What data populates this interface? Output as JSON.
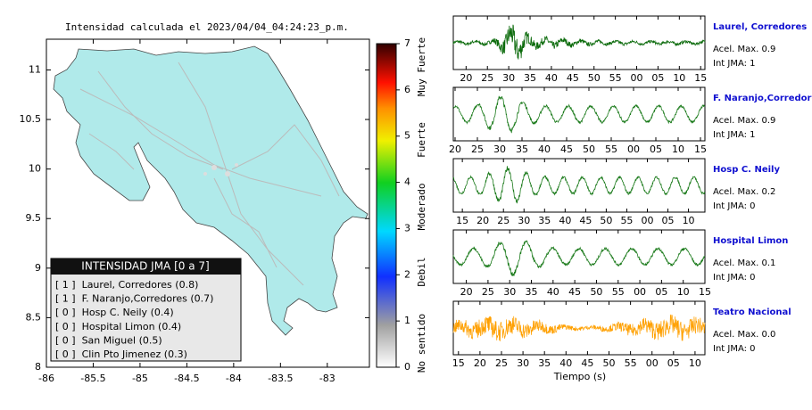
{
  "title": "Intensidad calculada el 2023/04/04_04:24:23_p.m.",
  "map": {
    "xlim": [
      -86,
      -82.55
    ],
    "ylim": [
      8,
      11.31
    ],
    "xticks": [
      -86,
      -85.5,
      -85,
      -84.5,
      -84,
      -83.5,
      -83
    ],
    "yticks": [
      8,
      8.5,
      9,
      9.5,
      10,
      10.5,
      11
    ]
  },
  "colorbar": {
    "lim": [
      0,
      7
    ],
    "ticks": [
      0,
      1,
      2,
      3,
      4,
      5,
      6,
      7
    ],
    "labels": [
      "No sentido",
      "Debil",
      "Moderado",
      "Fuerte",
      "Muy Fuerte"
    ]
  },
  "legend": {
    "title": "INTENSIDAD JMA [0 a 7]",
    "entries": [
      "[ 1 ]  Laurel, Corredores (0.8)",
      "[ 1 ]  F. Naranjo,Corredores (0.7)",
      "[ 0 ]  Hosp C. Neily (0.4)",
      "[ 0 ]  Hospital Limon (0.4)",
      "[ 0 ]  San Miguel (0.5)",
      "[ 0 ]  Clin Pto Jimenez (0.3)"
    ]
  },
  "stations": [
    {
      "name": "Laurel, Corredores",
      "accel": "Acel. Max. 0.9",
      "jma": "Int JMA: 1",
      "color": "#0a6a0a",
      "xlim": [
        17,
        76
      ],
      "xticks": [
        20,
        25,
        30,
        35,
        40,
        45,
        50,
        55,
        {
          "value": 60,
          "label": "00"
        },
        {
          "value": 65,
          "label": "05"
        },
        {
          "value": 70,
          "label": "10"
        },
        {
          "value": 75,
          "label": "15"
        }
      ]
    },
    {
      "name": "F. Naranjo,Corredores",
      "accel": "Acel. Max. 0.9",
      "jma": "Int JMA: 1",
      "color": "#1a7a1a",
      "xlim": [
        19.6,
        76
      ],
      "xticks": [
        20,
        25,
        30,
        35,
        40,
        45,
        50,
        55,
        {
          "value": 60,
          "label": "00"
        },
        {
          "value": 65,
          "label": "05"
        },
        {
          "value": 70,
          "label": "10"
        },
        {
          "value": 75,
          "label": "15"
        }
      ]
    },
    {
      "name": "Hosp C. Neily",
      "accel": "Acel. Max. 0.2",
      "jma": "Int JMA: 0",
      "color": "#1a7a1a",
      "xlim": [
        12.8,
        74
      ],
      "xticks": [
        15,
        20,
        25,
        30,
        35,
        40,
        45,
        50,
        55,
        {
          "value": 60,
          "label": "00"
        },
        {
          "value": 65,
          "label": "05"
        },
        {
          "value": 70,
          "label": "10"
        }
      ]
    },
    {
      "name": "Hospital Limon",
      "accel": "Acel. Max. 0.1",
      "jma": "Int JMA: 0",
      "color": "#1a7a1a",
      "xlim": [
        17,
        75
      ],
      "xticks": [
        20,
        25,
        30,
        35,
        40,
        45,
        50,
        55,
        {
          "value": 60,
          "label": "00"
        },
        {
          "value": 65,
          "label": "05"
        },
        {
          "value": 70,
          "label": "10"
        },
        {
          "value": 75,
          "label": "15"
        }
      ]
    },
    {
      "name": "Teatro Nacional",
      "accel": "Acel. Max. 0.0",
      "jma": "Int JMA: 0",
      "color": "#ffa000",
      "xlim": [
        13.8,
        72.3
      ],
      "xticks": [
        15,
        20,
        25,
        30,
        35,
        40,
        45,
        50,
        55,
        {
          "value": 60,
          "label": "00"
        },
        {
          "value": 65,
          "label": "05"
        },
        {
          "value": 70,
          "label": "10"
        }
      ]
    }
  ],
  "xlabel": "Tiempo (s)"
}
